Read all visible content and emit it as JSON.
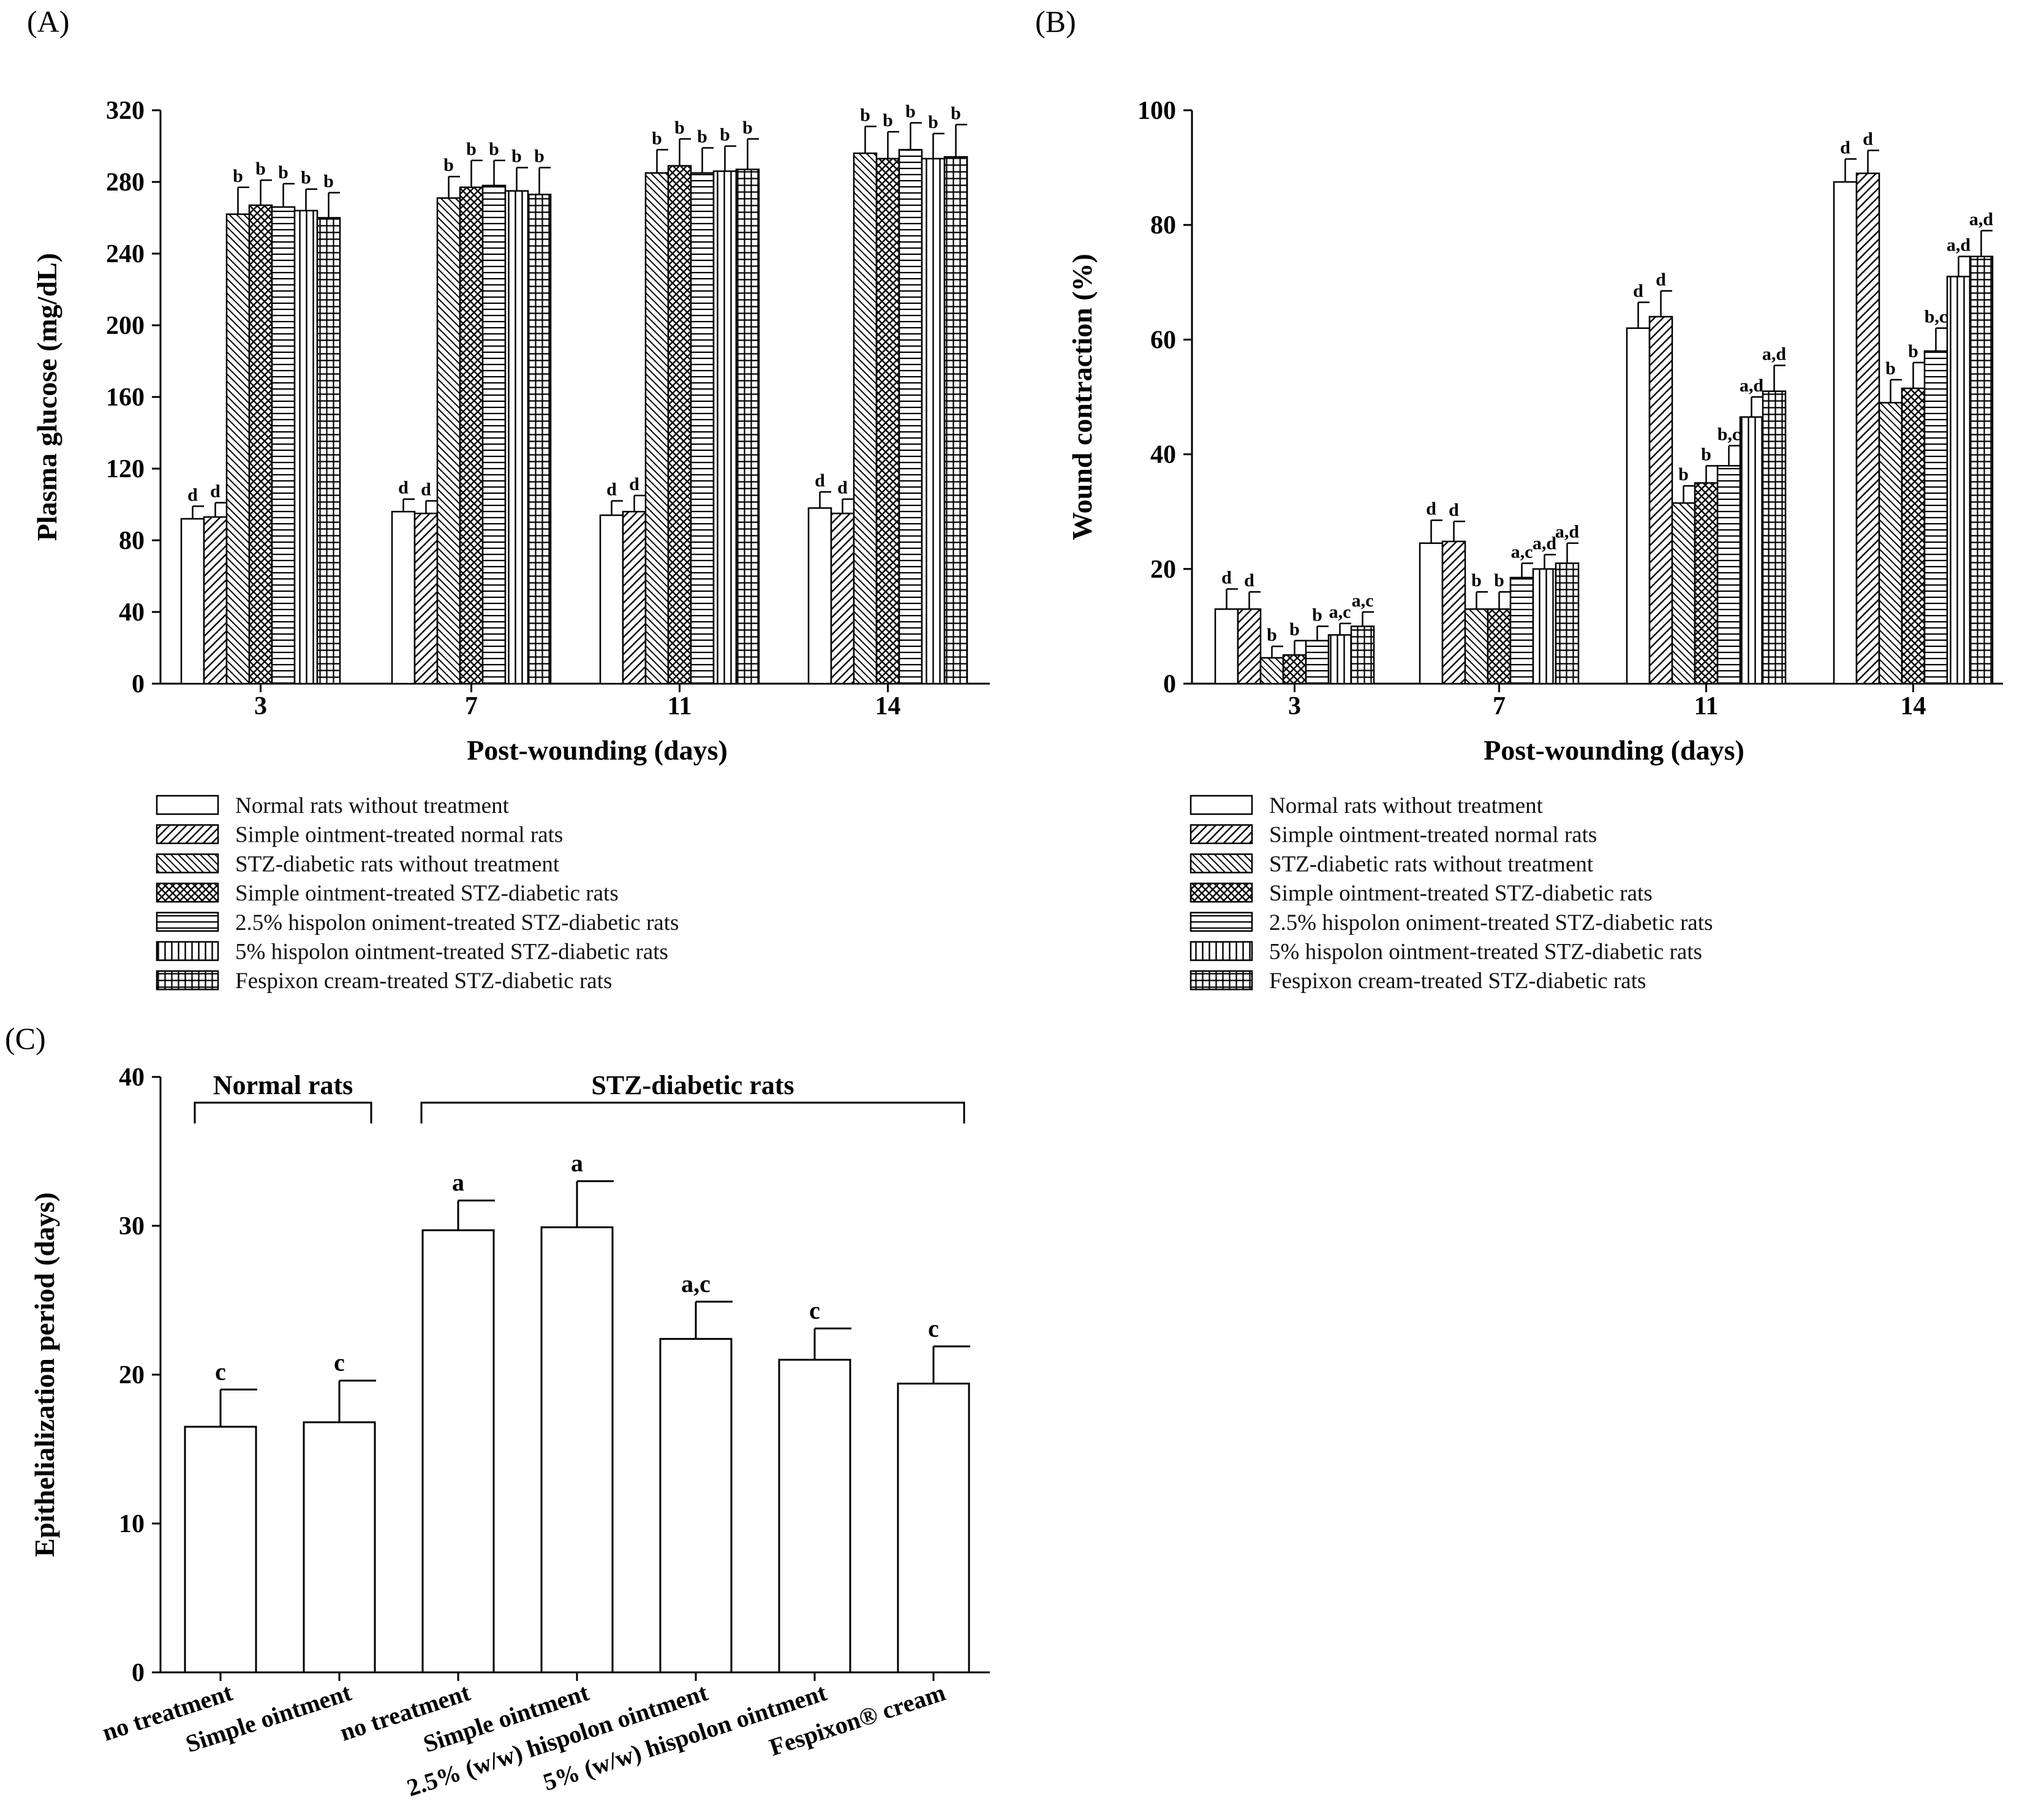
{
  "chart_data": [
    {
      "panel": "(A)",
      "type": "bar",
      "ylabel": "Plasma glucose (mg/dL)",
      "xlabel": "Post-wounding (days)",
      "ylim": [
        0,
        320
      ],
      "yticks": [
        0,
        40,
        80,
        120,
        160,
        200,
        240,
        280,
        320
      ],
      "categories": [
        "3",
        "7",
        "11",
        "14"
      ],
      "series": [
        {
          "name": "Normal rats without treatment",
          "pattern": "blank",
          "values": [
            92,
            96,
            94,
            98
          ],
          "errors": [
            7,
            7,
            8,
            9
          ],
          "labels": [
            "d",
            "d",
            "d",
            "d"
          ]
        },
        {
          "name": "Simple ointment-treated normal rats",
          "pattern": "diag-right",
          "values": [
            93,
            95,
            96,
            95
          ],
          "errors": [
            8,
            7,
            9,
            8
          ],
          "labels": [
            "d",
            "d",
            "d",
            "d"
          ]
        },
        {
          "name": "STZ-diabetic rats without treatment",
          "pattern": "diag-left",
          "values": [
            262,
            271,
            285,
            296
          ],
          "errors": [
            15,
            12,
            13,
            15
          ],
          "labels": [
            "b",
            "b",
            "b",
            "b"
          ]
        },
        {
          "name": "Simple ointment-treated STZ-diabetic rats",
          "pattern": "cross",
          "values": [
            267,
            277,
            289,
            293
          ],
          "errors": [
            14,
            15,
            15,
            15
          ],
          "labels": [
            "b",
            "b",
            "b",
            "b"
          ]
        },
        {
          "name": "2.5% hispolon oniment-treated STZ-diabetic rats",
          "pattern": "horizontal",
          "values": [
            266,
            278,
            285,
            298
          ],
          "errors": [
            13,
            14,
            14,
            15
          ],
          "labels": [
            "b",
            "b",
            "b",
            "b"
          ]
        },
        {
          "name": "5% hispolon ointment-treated STZ-diabetic rats",
          "pattern": "vertical",
          "values": [
            264,
            275,
            286,
            293
          ],
          "errors": [
            12,
            13,
            14,
            14
          ],
          "labels": [
            "b",
            "b",
            "b",
            "b"
          ]
        },
        {
          "name": "Fespixon cream-treated STZ-diabetic rats",
          "pattern": "grid",
          "values": [
            260,
            273,
            287,
            294
          ],
          "errors": [
            14,
            15,
            17,
            18
          ],
          "labels": [
            "b",
            "b",
            "b",
            "b"
          ]
        }
      ]
    },
    {
      "panel": "(B)",
      "type": "bar",
      "ylabel": "Wound contraction (%)",
      "xlabel": "Post-wounding (days)",
      "ylim": [
        0,
        100
      ],
      "yticks": [
        0,
        20,
        40,
        60,
        80,
        100
      ],
      "categories": [
        "3",
        "7",
        "11",
        "14"
      ],
      "series": [
        {
          "name": "Normal rats without treatment",
          "pattern": "blank",
          "values": [
            13,
            24.5,
            62,
            87.5
          ],
          "errors": [
            3.5,
            4,
            4.5,
            4
          ],
          "labels": [
            "d",
            "d",
            "d",
            "d"
          ]
        },
        {
          "name": "Simple ointment-treated normal rats",
          "pattern": "diag-right",
          "values": [
            13,
            24.8,
            64,
            89
          ],
          "errors": [
            3,
            3.5,
            4.5,
            4
          ],
          "labels": [
            "d",
            "d",
            "d",
            "d"
          ]
        },
        {
          "name": "STZ-diabetic rats without treatment",
          "pattern": "diag-left",
          "values": [
            4.5,
            13,
            31.5,
            49
          ],
          "errors": [
            2,
            3,
            3,
            4
          ],
          "labels": [
            "b",
            "b",
            "b",
            "b"
          ]
        },
        {
          "name": "Simple ointment-treated STZ-diabetic rats",
          "pattern": "cross",
          "values": [
            5,
            13,
            35,
            51.5
          ],
          "errors": [
            2.5,
            3,
            3,
            4.5
          ],
          "labels": [
            "b",
            "b",
            "b",
            "b"
          ]
        },
        {
          "name": "2.5% hispolon oniment-treated STZ-diabetic rats",
          "pattern": "horizontal",
          "values": [
            7.5,
            18.5,
            38,
            58
          ],
          "errors": [
            2.5,
            2.5,
            3.5,
            4
          ],
          "labels": [
            "b",
            "a,c",
            "b,c",
            "b,c"
          ]
        },
        {
          "name": "5% hispolon ointment-treated STZ-diabetic rats",
          "pattern": "vertical",
          "values": [
            8.5,
            20,
            46.5,
            71
          ],
          "errors": [
            2,
            2.5,
            3.5,
            3.5
          ],
          "labels": [
            "a,c",
            "a,d",
            "a,d",
            "a,d"
          ]
        },
        {
          "name": "Fespixon cream-treated STZ-diabetic rats",
          "pattern": "grid",
          "values": [
            10,
            21,
            51,
            74.5
          ],
          "errors": [
            2.5,
            3.5,
            4.5,
            4.5
          ],
          "labels": [
            "a,c",
            "a,d",
            "a,d",
            "a,d"
          ]
        }
      ]
    },
    {
      "panel": "(C)",
      "type": "bar",
      "ylabel": "Epithelialization period (days)",
      "ylim": [
        0,
        40
      ],
      "yticks": [
        0,
        10,
        20,
        30,
        40
      ],
      "groups": [
        {
          "label": "Normal rats",
          "from": 0,
          "to": 1
        },
        {
          "label": "STZ-diabetic rats",
          "from": 2,
          "to": 6
        }
      ],
      "categories": [
        "no treatment",
        "Simple ointment",
        "no treatment",
        "Simple ointment",
        "2.5% (w/w) hispolon ointment",
        "5% (w/w) hispolon ointment",
        "Fespixon® cream"
      ],
      "values": [
        16.5,
        16.8,
        29.7,
        29.9,
        22.4,
        21.0,
        19.4
      ],
      "errors": [
        2.5,
        2.8,
        2.0,
        3.1,
        2.5,
        2.1,
        2.5
      ],
      "labels": [
        "c",
        "c",
        "a",
        "a",
        "a,c",
        "c",
        "c"
      ]
    }
  ]
}
